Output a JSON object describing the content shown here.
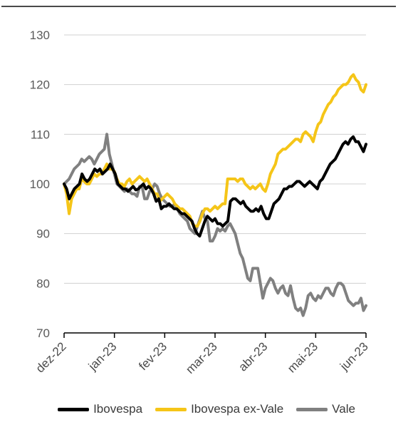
{
  "chart_data": {
    "type": "line",
    "title": "",
    "xlabel": "",
    "ylabel": "",
    "ylim": [
      70,
      130
    ],
    "yticks": [
      70,
      80,
      90,
      100,
      110,
      120,
      130
    ],
    "x_tick_labels": [
      "dez-22",
      "jan-23",
      "fev-23",
      "mar-23",
      "abr-23",
      "mai-23",
      "jun-23"
    ],
    "grid": "horizontal",
    "legend_position": "bottom",
    "series": [
      {
        "name": "Ibovespa",
        "color": "#000000",
        "values": [
          100,
          99,
          97,
          98,
          99,
          99.5,
          100,
          102,
          101,
          100.5,
          101,
          102,
          103,
          102.5,
          103,
          102,
          102.5,
          103,
          104,
          103,
          102,
          100,
          99.5,
          99,
          99,
          98.5,
          99,
          99.5,
          98.8,
          99,
          99.5,
          100,
          99,
          99.5,
          99,
          98,
          96.5,
          97,
          95,
          95.5,
          95.5,
          96,
          95.5,
          95,
          95,
          94.5,
          94,
          94,
          93.5,
          93,
          92.5,
          91,
          90,
          89.5,
          91,
          92.5,
          93.5,
          93,
          92.5,
          93,
          92,
          92,
          91.5,
          92,
          92.5,
          96.5,
          97,
          97,
          96.5,
          96,
          96.5,
          95.5,
          95,
          94.5,
          94.5,
          95,
          94.5,
          95.5,
          94,
          93,
          93,
          94.5,
          96,
          96.5,
          97,
          98,
          99,
          99,
          99.5,
          99.5,
          100,
          100.5,
          100.5,
          100,
          99.5,
          100,
          100.5,
          100,
          99.5,
          99,
          100.5,
          101,
          102,
          103,
          104,
          104.5,
          105,
          106,
          107,
          108,
          108.5,
          108,
          109,
          109.5,
          108.5,
          108.5,
          107.5,
          106.5,
          108
        ]
      },
      {
        "name": "Ibovespa ex-Vale",
        "color": "#F5C518",
        "values": [
          100,
          98,
          94,
          97,
          98,
          99,
          99,
          101,
          100.5,
          100,
          100,
          101,
          102,
          101.5,
          102,
          102,
          103,
          104,
          103,
          103,
          102.5,
          101,
          100,
          100,
          99.5,
          100.5,
          101,
          100,
          100.5,
          101,
          101.5,
          101,
          100.5,
          101,
          100,
          99,
          98,
          98,
          96.5,
          97,
          97.5,
          98,
          97.5,
          97,
          96,
          95.5,
          95,
          95,
          94.5,
          94,
          93.5,
          92,
          91.5,
          91.5,
          92.5,
          94,
          95,
          95,
          94.5,
          95,
          95.5,
          95,
          95.5,
          96,
          96,
          101,
          101,
          101,
          101,
          100.5,
          101,
          101,
          100,
          99.5,
          99,
          99.5,
          99,
          99.5,
          100,
          99,
          98.5,
          100,
          102,
          103,
          104,
          106,
          106.5,
          107,
          107,
          107.5,
          108,
          108.5,
          109,
          109,
          108.5,
          110,
          110.5,
          110,
          109.5,
          108.5,
          110.5,
          112,
          112.5,
          114,
          115,
          116,
          116.5,
          117.5,
          118,
          119,
          119.5,
          120,
          120,
          120.5,
          121.5,
          122,
          121,
          120.5,
          119,
          118.5,
          120
        ]
      },
      {
        "name": "Vale",
        "color": "#808080",
        "values": [
          100,
          100.5,
          101,
          102,
          103,
          103.5,
          104,
          105,
          104.5,
          105,
          105.5,
          105,
          104,
          105,
          106,
          106.5,
          107,
          110,
          106,
          104,
          102,
          100,
          99.5,
          99,
          98.5,
          99,
          98.5,
          98,
          98,
          97.5,
          99.5,
          99.5,
          97,
          97,
          98.5,
          99,
          100,
          99.5,
          98,
          97,
          96.5,
          96,
          95.5,
          95.5,
          96,
          95,
          94,
          93.5,
          93,
          92.5,
          91,
          90.5,
          90,
          91.5,
          93,
          94.5,
          93,
          92.5,
          88.5,
          88.5,
          89.5,
          91,
          90.5,
          91,
          90.5,
          91.5,
          92,
          91,
          90,
          88,
          86,
          85,
          83,
          81,
          80.5,
          83,
          83,
          83,
          80,
          77,
          79,
          80,
          81,
          80.5,
          79,
          78,
          79,
          79.5,
          78,
          77.5,
          79.5,
          77,
          75,
          74.5,
          75,
          73.5,
          75,
          77.5,
          78,
          77,
          76.5,
          77.5,
          77,
          78,
          79,
          79,
          78,
          77.5,
          79,
          80,
          80,
          79.5,
          78,
          76.5,
          76,
          75.5,
          76,
          76,
          77,
          74.5,
          75.5
        ]
      }
    ]
  }
}
